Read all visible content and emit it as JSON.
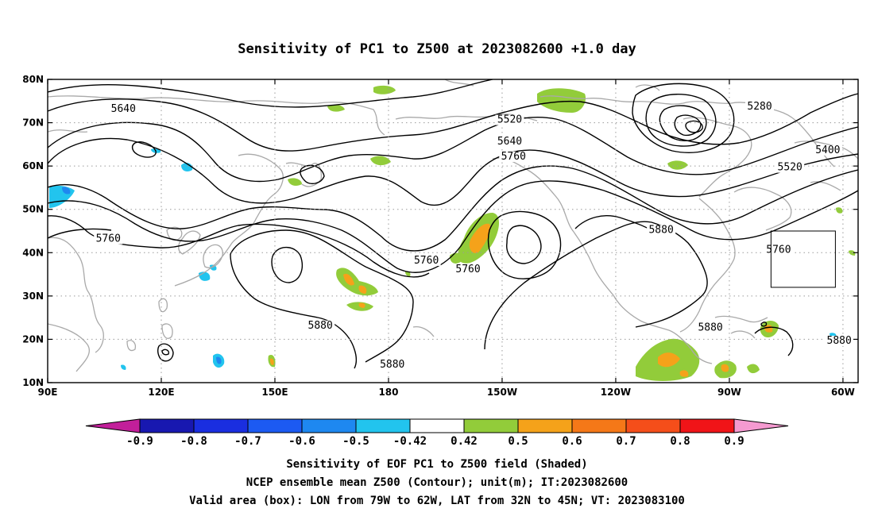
{
  "title": "Sensitivity of PC1 to Z500 at 2023082600 +1.0 day",
  "map": {
    "lon_range": [
      90,
      304
    ],
    "lat_range": [
      10,
      80
    ],
    "lon_ticks": [
      {
        "value": 90,
        "label": "90E"
      },
      {
        "value": 120,
        "label": "120E"
      },
      {
        "value": 150,
        "label": "150E"
      },
      {
        "value": 180,
        "label": "180"
      },
      {
        "value": 210,
        "label": "150W"
      },
      {
        "value": 240,
        "label": "120W"
      },
      {
        "value": 270,
        "label": "90W"
      },
      {
        "value": 300,
        "label": "60W"
      }
    ],
    "lat_ticks": [
      {
        "value": 10,
        "label": "10N"
      },
      {
        "value": 20,
        "label": "20N"
      },
      {
        "value": 30,
        "label": "30N"
      },
      {
        "value": 40,
        "label": "40N"
      },
      {
        "value": 50,
        "label": "50N"
      },
      {
        "value": 60,
        "label": "60N"
      },
      {
        "value": 70,
        "label": "70N"
      },
      {
        "value": 80,
        "label": "80N"
      }
    ],
    "grid": true,
    "contour_labels": [
      {
        "text": "5640",
        "lon": 110,
        "lat": 72.5
      },
      {
        "text": "5520",
        "lon": 212,
        "lat": 70
      },
      {
        "text": "5640",
        "lon": 212,
        "lat": 65
      },
      {
        "text": "5760",
        "lon": 213,
        "lat": 61.5
      },
      {
        "text": "5280",
        "lon": 278,
        "lat": 73
      },
      {
        "text": "5400",
        "lon": 296,
        "lat": 63
      },
      {
        "text": "5520",
        "lon": 286,
        "lat": 59
      },
      {
        "text": "5760",
        "lon": 106,
        "lat": 42.5
      },
      {
        "text": "5760",
        "lon": 190,
        "lat": 37.5
      },
      {
        "text": "5760",
        "lon": 201,
        "lat": 35.5
      },
      {
        "text": "5880",
        "lon": 252,
        "lat": 44.5
      },
      {
        "text": "5760",
        "lon": 283,
        "lat": 40
      },
      {
        "text": "5880",
        "lon": 162,
        "lat": 22.5
      },
      {
        "text": "5880",
        "lon": 181,
        "lat": 13.5
      },
      {
        "text": "5880",
        "lon": 265,
        "lat": 22
      },
      {
        "text": "5880",
        "lon": 299,
        "lat": 19
      }
    ],
    "valid_box": {
      "lon_min": 281,
      "lon_max": 298,
      "lat_min": 32,
      "lat_max": 45
    }
  },
  "colorbar": {
    "colors": [
      "#c21f9a",
      "#1818b0",
      "#1a2ee0",
      "#1c5af2",
      "#1e88f0",
      "#22c4ee",
      "#ffffff",
      "#92cc3a",
      "#f5a21a",
      "#f57818",
      "#f54e1a",
      "#f01418",
      "#f59ad0"
    ],
    "tick_labels": [
      "-0.9",
      "-0.8",
      "-0.7",
      "-0.6",
      "-0.5",
      "-0.42",
      "0.42",
      "0.5",
      "0.6",
      "0.7",
      "0.8",
      "0.9"
    ]
  },
  "captions": [
    "Sensitivity of EOF PC1 to Z500 field (Shaded)",
    "NCEP ensemble mean Z500 (Contour); unit(m); IT:2023082600",
    "Valid area (box): LON from 79W to 62W, LAT from 32N to 45N; VT: 2023083100"
  ]
}
